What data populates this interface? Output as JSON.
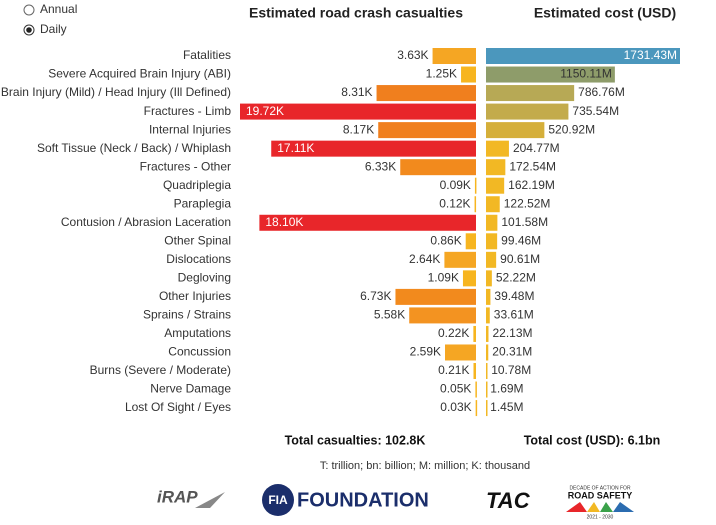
{
  "controls": {
    "options": [
      "Annual",
      "Daily"
    ],
    "selected": 1
  },
  "chart_data": [
    {
      "type": "bar",
      "orientation": "horizontal-left",
      "title": "Estimated road crash casualties",
      "categories": [
        "Fatalities",
        "Severe Acquired Brain Injury (ABI)",
        "Brain Injury (Mild) / Head Injury (Ill Defined)",
        "Fractures - Limb",
        "Internal Injuries",
        "Soft Tissue (Neck / Back) / Whiplash",
        "Fractures - Other",
        "Quadriplegia",
        "Paraplegia",
        "Contusion / Abrasion Laceration",
        "Other Spinal",
        "Dislocations",
        "Degloving",
        "Other Injuries",
        "Sprains / Strains",
        "Amputations",
        "Concussion",
        "Burns (Severe / Moderate)",
        "Nerve Damage",
        "Lost Of Sight / Eyes"
      ],
      "values": [
        3.63,
        1.25,
        8.31,
        19.72,
        8.17,
        17.11,
        6.33,
        0.09,
        0.12,
        18.1,
        0.86,
        2.64,
        1.09,
        6.73,
        5.58,
        0.22,
        2.59,
        0.21,
        0.05,
        0.03
      ],
      "value_labels": [
        "3.63K",
        "1.25K",
        "8.31K",
        "19.72K",
        "8.17K",
        "17.11K",
        "6.33K",
        "0.09K",
        "0.12K",
        "18.10K",
        "0.86K",
        "2.64K",
        "1.09K",
        "6.73K",
        "5.58K",
        "0.22K",
        "2.59K",
        "0.21K",
        "0.05K",
        "0.03K"
      ],
      "colors": [
        "#f5a623",
        "#f7b51f",
        "#f07f1e",
        "#e8262a",
        "#f07f1e",
        "#e8262a",
        "#f28a1d",
        "#f7b51f",
        "#f7b51f",
        "#e8262a",
        "#f7b51f",
        "#f5a623",
        "#f7b51f",
        "#f28a1d",
        "#f39321",
        "#f7b51f",
        "#f5a623",
        "#f7b51f",
        "#f7b51f",
        "#f7b51f"
      ],
      "total": "Total casualties:  102.8K"
    },
    {
      "type": "bar",
      "orientation": "horizontal-right",
      "title": "Estimated cost (USD)",
      "values": [
        1731.43,
        1150.11,
        786.76,
        735.54,
        520.92,
        204.77,
        172.54,
        162.19,
        122.52,
        101.58,
        99.46,
        90.61,
        52.22,
        39.48,
        33.61,
        22.13,
        20.31,
        10.78,
        1.69,
        1.45
      ],
      "value_labels": [
        "1731.43M",
        "1150.11M",
        "786.76M",
        "735.54M",
        "520.92M",
        "204.77M",
        "172.54M",
        "162.19M",
        "122.52M",
        "101.58M",
        "99.46M",
        "90.61M",
        "52.22M",
        "39.48M",
        "33.61M",
        "22.13M",
        "20.31M",
        "10.78M",
        "1.69M",
        "1.45M"
      ],
      "colors": [
        "#4b97bd",
        "#8e9c6a",
        "#b7a955",
        "#c3ab4b",
        "#d5af3a",
        "#f2b824",
        "#f2b824",
        "#f2b824",
        "#f2b824",
        "#f2b824",
        "#f2b824",
        "#f2b824",
        "#f2b824",
        "#f2b824",
        "#f2b824",
        "#f2b824",
        "#f2b824",
        "#f2b824",
        "#f2b824",
        "#f2b824"
      ],
      "total": "Total cost (USD):   6.1bn"
    }
  ],
  "note": "T: trillion; bn: billion; M: million; K: thousand",
  "logos": {
    "irap": "iRAP",
    "fia": "FIA",
    "foundation": "FOUNDATION",
    "tac": "TAC",
    "decade": "DECADE OF ACTION FOR",
    "roadsafety": "ROAD SAFETY",
    "years": "2021 - 2030"
  }
}
